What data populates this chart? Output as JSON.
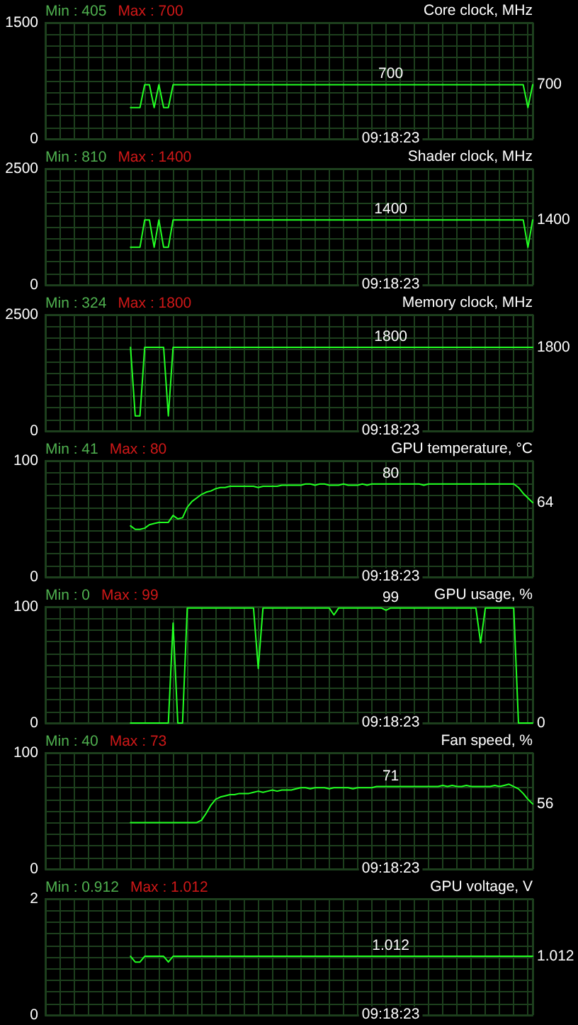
{
  "chart_data": [
    {
      "type": "line",
      "title": "Core clock, MHz",
      "annotations": [
        "Min : 405",
        "Max : 700",
        "09:18:23"
      ],
      "categories": [
        null,
        null,
        null,
        null,
        null,
        null,
        null,
        null,
        null,
        null,
        null,
        null,
        null,
        null,
        null,
        null,
        null,
        null,
        null,
        null,
        null,
        null,
        null,
        null,
        null,
        null,
        null,
        null,
        null,
        null,
        null,
        null,
        null,
        null,
        null,
        null,
        null,
        null,
        null,
        null,
        null,
        null,
        null,
        null,
        null,
        null,
        null,
        null,
        null,
        null,
        null,
        null,
        null,
        null,
        null,
        null,
        null,
        null,
        null,
        null,
        null,
        null,
        null,
        null,
        null,
        null,
        null,
        null,
        null,
        null,
        null,
        null,
        null,
        null,
        null,
        null,
        null,
        null,
        null,
        null,
        null,
        null,
        null,
        null,
        null,
        null,
        null,
        null,
        null,
        null,
        null,
        null,
        null,
        null,
        null,
        null,
        null,
        null,
        null,
        null,
        null,
        null,
        null,
        null
      ],
      "values": [
        null,
        null,
        null,
        null,
        null,
        null,
        null,
        null,
        null,
        null,
        null,
        null,
        null,
        null,
        null,
        null,
        null,
        null,
        405,
        405,
        405,
        700,
        700,
        405,
        700,
        405,
        405,
        700,
        700,
        700,
        700,
        700,
        700,
        700,
        700,
        700,
        700,
        700,
        700,
        700,
        700,
        700,
        700,
        700,
        700,
        700,
        700,
        700,
        700,
        700,
        700,
        700,
        700,
        700,
        700,
        700,
        700,
        700,
        700,
        700,
        700,
        700,
        700,
        700,
        700,
        700,
        700,
        700,
        700,
        700,
        700,
        700,
        700,
        700,
        700,
        700,
        700,
        700,
        700,
        700,
        700,
        700,
        700,
        700,
        700,
        700,
        700,
        700,
        700,
        700,
        700,
        700,
        700,
        700,
        700,
        700,
        700,
        700,
        700,
        700,
        700,
        700,
        405,
        700
      ],
      "value_labels": [
        null,
        null,
        null,
        null,
        null,
        null,
        null,
        null,
        null,
        null,
        null,
        null,
        null,
        null,
        null,
        null,
        null,
        null,
        null,
        null,
        null,
        null,
        null,
        null,
        null,
        null,
        null,
        null,
        null,
        null,
        null,
        null,
        null,
        null,
        null,
        null,
        null,
        null,
        null,
        null,
        null,
        null,
        null,
        null,
        null,
        null,
        null,
        null,
        null,
        null,
        null,
        null,
        null,
        null,
        null,
        null,
        null,
        null,
        null,
        null,
        null,
        null,
        null,
        null,
        null,
        null,
        null,
        null,
        null,
        null,
        null,
        null,
        null,
        "700",
        null,
        null,
        null,
        null,
        null,
        null,
        null,
        null,
        null,
        null,
        null,
        null,
        null,
        null,
        null,
        null,
        null,
        null,
        null,
        null,
        null,
        null,
        null,
        null,
        null,
        null,
        null,
        null,
        null,
        "700"
      ],
      "color": "#22ff22",
      "ylim": [
        0,
        1500
      ],
      "yticks": [
        0,
        {
          "value": 150,
          "label": null
        },
        {
          "value": 300,
          "label": null
        },
        {
          "value": 450,
          "label": null
        },
        {
          "value": 600,
          "label": null
        },
        {
          "value": 750,
          "label": null
        },
        {
          "value": 900,
          "label": null
        },
        {
          "value": 1050,
          "label": null
        },
        {
          "value": 1200,
          "label": null
        },
        {
          "value": 1350,
          "label": null
        },
        1500
      ],
      "grid": true,
      "tick_labels": "y",
      "marker": "none",
      "line_style": "solid"
    },
    {
      "type": "line",
      "title": "Shader clock, MHz",
      "annotations": [
        "Min : 810",
        "Max : 1400",
        "09:18:23"
      ],
      "categories": [
        null,
        null,
        null,
        null,
        null,
        null,
        null,
        null,
        null,
        null,
        null,
        null,
        null,
        null,
        null,
        null,
        null,
        null,
        null,
        null,
        null,
        null,
        null,
        null,
        null,
        null,
        null,
        null,
        null,
        null,
        null,
        null,
        null,
        null,
        null,
        null,
        null,
        null,
        null,
        null,
        null,
        null,
        null,
        null,
        null,
        null,
        null,
        null,
        null,
        null,
        null,
        null,
        null,
        null,
        null,
        null,
        null,
        null,
        null,
        null,
        null,
        null,
        null,
        null,
        null,
        null,
        null,
        null,
        null,
        null,
        null,
        null,
        null,
        null,
        null,
        null,
        null,
        null,
        null,
        null,
        null,
        null,
        null,
        null,
        null,
        null,
        null,
        null,
        null,
        null,
        null,
        null,
        null,
        null,
        null,
        null,
        null,
        null,
        null,
        null,
        null,
        null,
        null,
        null
      ],
      "values": [
        null,
        null,
        null,
        null,
        null,
        null,
        null,
        null,
        null,
        null,
        null,
        null,
        null,
        null,
        null,
        null,
        null,
        null,
        810,
        810,
        810,
        1400,
        1400,
        810,
        1400,
        810,
        810,
        1400,
        1400,
        1400,
        1400,
        1400,
        1400,
        1400,
        1400,
        1400,
        1400,
        1400,
        1400,
        1400,
        1400,
        1400,
        1400,
        1400,
        1400,
        1400,
        1400,
        1400,
        1400,
        1400,
        1400,
        1400,
        1400,
        1400,
        1400,
        1400,
        1400,
        1400,
        1400,
        1400,
        1400,
        1400,
        1400,
        1400,
        1400,
        1400,
        1400,
        1400,
        1400,
        1400,
        1400,
        1400,
        1400,
        1400,
        1400,
        1400,
        1400,
        1400,
        1400,
        1400,
        1400,
        1400,
        1400,
        1400,
        1400,
        1400,
        1400,
        1400,
        1400,
        1400,
        1400,
        1400,
        1400,
        1400,
        1400,
        1400,
        1400,
        1400,
        1400,
        1400,
        1400,
        1400,
        810,
        1400
      ],
      "value_labels": [
        null,
        null,
        null,
        null,
        null,
        null,
        null,
        null,
        null,
        null,
        null,
        null,
        null,
        null,
        null,
        null,
        null,
        null,
        null,
        null,
        null,
        null,
        null,
        null,
        null,
        null,
        null,
        null,
        null,
        null,
        null,
        null,
        null,
        null,
        null,
        null,
        null,
        null,
        null,
        null,
        null,
        null,
        null,
        null,
        null,
        null,
        null,
        null,
        null,
        null,
        null,
        null,
        null,
        null,
        null,
        null,
        null,
        null,
        null,
        null,
        null,
        null,
        null,
        null,
        null,
        null,
        null,
        null,
        null,
        null,
        null,
        null,
        null,
        "1400",
        null,
        null,
        null,
        null,
        null,
        null,
        null,
        null,
        null,
        null,
        null,
        null,
        null,
        null,
        null,
        null,
        null,
        null,
        null,
        null,
        null,
        null,
        null,
        null,
        null,
        null,
        null,
        null,
        null,
        "1400"
      ],
      "color": "#22ff22",
      "ylim": [
        0,
        2500
      ],
      "yticks": [
        0,
        {
          "value": 250,
          "label": null
        },
        {
          "value": 500,
          "label": null
        },
        {
          "value": 750,
          "label": null
        },
        {
          "value": 1000,
          "label": null
        },
        {
          "value": 1250,
          "label": null
        },
        {
          "value": 1500,
          "label": null
        },
        {
          "value": 1750,
          "label": null
        },
        {
          "value": 2000,
          "label": null
        },
        {
          "value": 2250,
          "label": null
        },
        2500
      ],
      "grid": true,
      "tick_labels": "y",
      "marker": "none",
      "line_style": "solid"
    },
    {
      "type": "line",
      "title": "Memory clock, MHz",
      "annotations": [
        "Min : 324",
        "Max : 1800",
        "09:18:23"
      ],
      "categories": [
        null,
        null,
        null,
        null,
        null,
        null,
        null,
        null,
        null,
        null,
        null,
        null,
        null,
        null,
        null,
        null,
        null,
        null,
        null,
        null,
        null,
        null,
        null,
        null,
        null,
        null,
        null,
        null,
        null,
        null,
        null,
        null,
        null,
        null,
        null,
        null,
        null,
        null,
        null,
        null,
        null,
        null,
        null,
        null,
        null,
        null,
        null,
        null,
        null,
        null,
        null,
        null,
        null,
        null,
        null,
        null,
        null,
        null,
        null,
        null,
        null,
        null,
        null,
        null,
        null,
        null,
        null,
        null,
        null,
        null,
        null,
        null,
        null,
        null,
        null,
        null,
        null,
        null,
        null,
        null,
        null,
        null,
        null,
        null,
        null,
        null,
        null,
        null,
        null,
        null,
        null,
        null,
        null,
        null,
        null,
        null,
        null,
        null,
        null,
        null,
        null,
        null,
        null,
        null
      ],
      "values": [
        null,
        null,
        null,
        null,
        null,
        null,
        null,
        null,
        null,
        null,
        null,
        null,
        null,
        null,
        null,
        null,
        null,
        null,
        1800,
        324,
        324,
        1800,
        1800,
        1800,
        1800,
        1800,
        324,
        1800,
        1800,
        1800,
        1800,
        1800,
        1800,
        1800,
        1800,
        1800,
        1800,
        1800,
        1800,
        1800,
        1800,
        1800,
        1800,
        1800,
        1800,
        1800,
        1800,
        1800,
        1800,
        1800,
        1800,
        1800,
        1800,
        1800,
        1800,
        1800,
        1800,
        1800,
        1800,
        1800,
        1800,
        1800,
        1800,
        1800,
        1800,
        1800,
        1800,
        1800,
        1800,
        1800,
        1800,
        1800,
        1800,
        1800,
        1800,
        1800,
        1800,
        1800,
        1800,
        1800,
        1800,
        1800,
        1800,
        1800,
        1800,
        1800,
        1800,
        1800,
        1800,
        1800,
        1800,
        1800,
        1800,
        1800,
        1800,
        1800,
        1800,
        1800,
        1800,
        1800,
        1800,
        1800,
        1800,
        1800
      ],
      "value_labels": [
        null,
        null,
        null,
        null,
        null,
        null,
        null,
        null,
        null,
        null,
        null,
        null,
        null,
        null,
        null,
        null,
        null,
        null,
        null,
        null,
        null,
        null,
        null,
        null,
        null,
        null,
        null,
        null,
        null,
        null,
        null,
        null,
        null,
        null,
        null,
        null,
        null,
        null,
        null,
        null,
        null,
        null,
        null,
        null,
        null,
        null,
        null,
        null,
        null,
        null,
        null,
        null,
        null,
        null,
        null,
        null,
        null,
        null,
        null,
        null,
        null,
        null,
        null,
        null,
        null,
        null,
        null,
        null,
        null,
        null,
        null,
        null,
        null,
        "1800",
        null,
        null,
        null,
        null,
        null,
        null,
        null,
        null,
        null,
        null,
        null,
        null,
        null,
        null,
        null,
        null,
        null,
        null,
        null,
        null,
        null,
        null,
        null,
        null,
        null,
        null,
        null,
        null,
        null,
        "1800"
      ],
      "color": "#22ff22",
      "ylim": [
        0,
        2500
      ],
      "yticks": [
        0,
        {
          "value": 250,
          "label": null
        },
        {
          "value": 500,
          "label": null
        },
        {
          "value": 750,
          "label": null
        },
        {
          "value": 1000,
          "label": null
        },
        {
          "value": 1250,
          "label": null
        },
        {
          "value": 1500,
          "label": null
        },
        {
          "value": 1750,
          "label": null
        },
        {
          "value": 2000,
          "label": null
        },
        {
          "value": 2250,
          "label": null
        },
        2500
      ],
      "grid": true,
      "tick_labels": "y",
      "marker": "none",
      "line_style": "solid"
    },
    {
      "type": "line",
      "title": "GPU temperature, °C",
      "annotations": [
        "Min : 41",
        "Max : 80",
        "09:18:23"
      ],
      "categories": [
        null,
        null,
        null,
        null,
        null,
        null,
        null,
        null,
        null,
        null,
        null,
        null,
        null,
        null,
        null,
        null,
        null,
        null,
        null,
        null,
        null,
        null,
        null,
        null,
        null,
        null,
        null,
        null,
        null,
        null,
        null,
        null,
        null,
        null,
        null,
        null,
        null,
        null,
        null,
        null,
        null,
        null,
        null,
        null,
        null,
        null,
        null,
        null,
        null,
        null,
        null,
        null,
        null,
        null,
        null,
        null,
        null,
        null,
        null,
        null,
        null,
        null,
        null,
        null,
        null,
        null,
        null,
        null,
        null,
        null,
        null,
        null,
        null,
        null,
        null,
        null,
        null,
        null,
        null,
        null,
        null,
        null,
        null,
        null,
        null,
        null,
        null,
        null,
        null,
        null,
        null,
        null,
        null,
        null,
        null,
        null,
        null,
        null,
        null,
        null,
        null,
        null,
        null,
        null
      ],
      "values": [
        null,
        null,
        null,
        null,
        null,
        null,
        null,
        null,
        null,
        null,
        null,
        null,
        null,
        null,
        null,
        null,
        null,
        null,
        44,
        41,
        41,
        42,
        45,
        46,
        47,
        47,
        47,
        53,
        50,
        51,
        60,
        65,
        68,
        71,
        73,
        74,
        76,
        77,
        77,
        78,
        78,
        78,
        78,
        78,
        78,
        77,
        78,
        78,
        78,
        78,
        79,
        79,
        79,
        79,
        79,
        80,
        80,
        79,
        80,
        80,
        79,
        79,
        79,
        80,
        79,
        79,
        79,
        80,
        79,
        80,
        80,
        80,
        80,
        80,
        80,
        80,
        80,
        80,
        80,
        80,
        79,
        80,
        80,
        80,
        80,
        80,
        80,
        80,
        80,
        80,
        80,
        80,
        80,
        80,
        80,
        80,
        80,
        80,
        80,
        80,
        77,
        72,
        68,
        64
      ],
      "value_labels": [
        null,
        null,
        null,
        null,
        null,
        null,
        null,
        null,
        null,
        null,
        null,
        null,
        null,
        null,
        null,
        null,
        null,
        null,
        null,
        null,
        null,
        null,
        null,
        null,
        null,
        null,
        null,
        null,
        null,
        null,
        null,
        null,
        null,
        null,
        null,
        null,
        null,
        null,
        null,
        null,
        null,
        null,
        null,
        null,
        null,
        null,
        null,
        null,
        null,
        null,
        null,
        null,
        null,
        null,
        null,
        null,
        null,
        null,
        null,
        null,
        null,
        null,
        null,
        null,
        null,
        null,
        null,
        null,
        null,
        null,
        null,
        null,
        null,
        "80",
        null,
        null,
        null,
        null,
        null,
        null,
        null,
        null,
        null,
        null,
        null,
        null,
        null,
        null,
        null,
        null,
        null,
        null,
        null,
        null,
        null,
        null,
        null,
        null,
        null,
        null,
        null,
        null,
        null,
        "64"
      ],
      "color": "#22ff22",
      "ylim": [
        0,
        100
      ],
      "yticks": [
        0,
        {
          "value": 10,
          "label": null
        },
        {
          "value": 20,
          "label": null
        },
        {
          "value": 30,
          "label": null
        },
        {
          "value": 40,
          "label": null
        },
        {
          "value": 50,
          "label": null
        },
        {
          "value": 60,
          "label": null
        },
        {
          "value": 70,
          "label": null
        },
        {
          "value": 80,
          "label": null
        },
        {
          "value": 90,
          "label": null
        },
        100
      ],
      "grid": true,
      "tick_labels": "y",
      "marker": "none",
      "line_style": "solid"
    },
    {
      "type": "line",
      "title": "GPU usage, %",
      "annotations": [
        "Min : 0",
        "Max : 99",
        "09:18:23"
      ],
      "categories": [
        null,
        null,
        null,
        null,
        null,
        null,
        null,
        null,
        null,
        null,
        null,
        null,
        null,
        null,
        null,
        null,
        null,
        null,
        null,
        null,
        null,
        null,
        null,
        null,
        null,
        null,
        null,
        null,
        null,
        null,
        null,
        null,
        null,
        null,
        null,
        null,
        null,
        null,
        null,
        null,
        null,
        null,
        null,
        null,
        null,
        null,
        null,
        null,
        null,
        null,
        null,
        null,
        null,
        null,
        null,
        null,
        null,
        null,
        null,
        null,
        null,
        null,
        null,
        null,
        null,
        null,
        null,
        null,
        null,
        null,
        null,
        null,
        null,
        null,
        null,
        null,
        null,
        null,
        null,
        null,
        null,
        null,
        null,
        null,
        null,
        null,
        null,
        null,
        null,
        null,
        null,
        null,
        null,
        null,
        null,
        null,
        null,
        null,
        null,
        null,
        null,
        null,
        null,
        null
      ],
      "values": [
        null,
        null,
        null,
        null,
        null,
        null,
        null,
        null,
        null,
        null,
        null,
        null,
        null,
        null,
        null,
        null,
        null,
        null,
        0,
        0,
        0,
        0,
        0,
        0,
        0,
        0,
        0,
        86,
        0,
        0,
        99,
        99,
        99,
        99,
        99,
        99,
        99,
        99,
        99,
        99,
        99,
        99,
        99,
        99,
        99,
        47,
        99,
        99,
        99,
        99,
        99,
        99,
        99,
        99,
        99,
        99,
        99,
        99,
        99,
        99,
        99,
        93,
        99,
        99,
        99,
        99,
        99,
        99,
        99,
        99,
        99,
        99,
        97,
        99,
        99,
        99,
        99,
        99,
        99,
        99,
        99,
        99,
        99,
        99,
        99,
        99,
        99,
        99,
        99,
        99,
        99,
        99,
        69,
        99,
        99,
        99,
        99,
        99,
        99,
        99,
        0,
        0,
        0,
        0
      ],
      "value_labels": [
        null,
        null,
        null,
        null,
        null,
        null,
        null,
        null,
        null,
        null,
        null,
        null,
        null,
        null,
        null,
        null,
        null,
        null,
        null,
        null,
        null,
        null,
        null,
        null,
        null,
        null,
        null,
        null,
        null,
        null,
        null,
        null,
        null,
        null,
        null,
        null,
        null,
        null,
        null,
        null,
        null,
        null,
        null,
        null,
        null,
        null,
        null,
        null,
        null,
        null,
        null,
        null,
        null,
        null,
        null,
        null,
        null,
        null,
        null,
        null,
        null,
        null,
        null,
        null,
        null,
        null,
        null,
        null,
        null,
        null,
        null,
        null,
        null,
        "99",
        null,
        null,
        null,
        null,
        null,
        null,
        null,
        null,
        null,
        null,
        null,
        null,
        null,
        null,
        null,
        null,
        null,
        null,
        null,
        null,
        null,
        null,
        null,
        null,
        null,
        null,
        null,
        null,
        null,
        "0"
      ],
      "color": "#22ff22",
      "ylim": [
        0,
        100
      ],
      "yticks": [
        0,
        {
          "value": 10,
          "label": null
        },
        {
          "value": 20,
          "label": null
        },
        {
          "value": 30,
          "label": null
        },
        {
          "value": 40,
          "label": null
        },
        {
          "value": 50,
          "label": null
        },
        {
          "value": 60,
          "label": null
        },
        {
          "value": 70,
          "label": null
        },
        {
          "value": 80,
          "label": null
        },
        {
          "value": 90,
          "label": null
        },
        100
      ],
      "grid": true,
      "tick_labels": "y",
      "marker": "none",
      "line_style": "solid"
    },
    {
      "type": "line",
      "title": "Fan speed, %",
      "annotations": [
        "Min : 40",
        "Max : 73",
        "09:18:23"
      ],
      "categories": [
        null,
        null,
        null,
        null,
        null,
        null,
        null,
        null,
        null,
        null,
        null,
        null,
        null,
        null,
        null,
        null,
        null,
        null,
        null,
        null,
        null,
        null,
        null,
        null,
        null,
        null,
        null,
        null,
        null,
        null,
        null,
        null,
        null,
        null,
        null,
        null,
        null,
        null,
        null,
        null,
        null,
        null,
        null,
        null,
        null,
        null,
        null,
        null,
        null,
        null,
        null,
        null,
        null,
        null,
        null,
        null,
        null,
        null,
        null,
        null,
        null,
        null,
        null,
        null,
        null,
        null,
        null,
        null,
        null,
        null,
        null,
        null,
        null,
        null,
        null,
        null,
        null,
        null,
        null,
        null,
        null,
        null,
        null,
        null,
        null,
        null,
        null,
        null,
        null,
        null,
        null,
        null,
        null,
        null,
        null,
        null,
        null,
        null,
        null,
        null,
        null,
        null,
        null,
        null
      ],
      "values": [
        null,
        null,
        null,
        null,
        null,
        null,
        null,
        null,
        null,
        null,
        null,
        null,
        null,
        null,
        null,
        null,
        null,
        null,
        40,
        40,
        40,
        40,
        40,
        40,
        40,
        40,
        40,
        40,
        40,
        40,
        40,
        40,
        40,
        42,
        48,
        55,
        60,
        62,
        63,
        64,
        64,
        65,
        65,
        65,
        66,
        67,
        66,
        67,
        68,
        67,
        68,
        68,
        68,
        69,
        70,
        70,
        69,
        70,
        70,
        70,
        69,
        70,
        70,
        70,
        70,
        69,
        70,
        70,
        70,
        70,
        71,
        71,
        71,
        71,
        71,
        71,
        71,
        71,
        71,
        71,
        71,
        71,
        71,
        71,
        72,
        71,
        72,
        71,
        71,
        72,
        71,
        71,
        71,
        71,
        71,
        72,
        71,
        72,
        73,
        71,
        69,
        65,
        60,
        56
      ],
      "value_labels": [
        null,
        null,
        null,
        null,
        null,
        null,
        null,
        null,
        null,
        null,
        null,
        null,
        null,
        null,
        null,
        null,
        null,
        null,
        null,
        null,
        null,
        null,
        null,
        null,
        null,
        null,
        null,
        null,
        null,
        null,
        null,
        null,
        null,
        null,
        null,
        null,
        null,
        null,
        null,
        null,
        null,
        null,
        null,
        null,
        null,
        null,
        null,
        null,
        null,
        null,
        null,
        null,
        null,
        null,
        null,
        null,
        null,
        null,
        null,
        null,
        null,
        null,
        null,
        null,
        null,
        null,
        null,
        null,
        null,
        null,
        null,
        null,
        null,
        "71",
        null,
        null,
        null,
        null,
        null,
        null,
        null,
        null,
        null,
        null,
        null,
        null,
        null,
        null,
        null,
        null,
        null,
        null,
        null,
        null,
        null,
        null,
        null,
        null,
        null,
        null,
        null,
        null,
        null,
        "56"
      ],
      "color": "#22ff22",
      "ylim": [
        0,
        100
      ],
      "yticks": [
        0,
        {
          "value": 10,
          "label": null
        },
        {
          "value": 20,
          "label": null
        },
        {
          "value": 30,
          "label": null
        },
        {
          "value": 40,
          "label": null
        },
        {
          "value": 50,
          "label": null
        },
        {
          "value": 60,
          "label": null
        },
        {
          "value": 70,
          "label": null
        },
        {
          "value": 80,
          "label": null
        },
        {
          "value": 90,
          "label": null
        },
        100
      ],
      "grid": true,
      "tick_labels": "y",
      "marker": "none",
      "line_style": "solid"
    },
    {
      "type": "line",
      "title": "GPU voltage, V",
      "annotations": [
        "Min : 0.912",
        "Max : 1.012",
        "09:18:23"
      ],
      "categories": [
        null,
        null,
        null,
        null,
        null,
        null,
        null,
        null,
        null,
        null,
        null,
        null,
        null,
        null,
        null,
        null,
        null,
        null,
        null,
        null,
        null,
        null,
        null,
        null,
        null,
        null,
        null,
        null,
        null,
        null,
        null,
        null,
        null,
        null,
        null,
        null,
        null,
        null,
        null,
        null,
        null,
        null,
        null,
        null,
        null,
        null,
        null,
        null,
        null,
        null,
        null,
        null,
        null,
        null,
        null,
        null,
        null,
        null,
        null,
        null,
        null,
        null,
        null,
        null,
        null,
        null,
        null,
        null,
        null,
        null,
        null,
        null,
        null,
        null,
        null,
        null,
        null,
        null,
        null,
        null,
        null,
        null,
        null,
        null,
        null,
        null,
        null,
        null,
        null,
        null,
        null,
        null,
        null,
        null,
        null,
        null,
        null,
        null,
        null,
        null,
        null,
        null,
        null,
        null
      ],
      "values": [
        null,
        null,
        null,
        null,
        null,
        null,
        null,
        null,
        null,
        null,
        null,
        null,
        null,
        null,
        null,
        null,
        null,
        null,
        1.012,
        0.912,
        0.912,
        1.012,
        1.012,
        1.012,
        1.012,
        1.012,
        0.912,
        1.012,
        1.012,
        1.012,
        1.012,
        1.012,
        1.012,
        1.012,
        1.012,
        1.012,
        1.012,
        1.012,
        1.012,
        1.012,
        1.012,
        1.012,
        1.012,
        1.012,
        1.012,
        1.012,
        1.012,
        1.012,
        1.012,
        1.012,
        1.012,
        1.012,
        1.012,
        1.012,
        1.012,
        1.012,
        1.012,
        1.012,
        1.012,
        1.012,
        1.012,
        1.012,
        1.012,
        1.012,
        1.012,
        1.012,
        1.012,
        1.012,
        1.012,
        1.012,
        1.012,
        1.012,
        1.012,
        1.012,
        1.012,
        1.012,
        1.012,
        1.012,
        1.012,
        1.012,
        1.012,
        1.012,
        1.012,
        1.012,
        1.012,
        1.012,
        1.012,
        1.012,
        1.012,
        1.012,
        1.012,
        1.012,
        1.012,
        1.012,
        1.012,
        1.012,
        1.012,
        1.012,
        1.012,
        1.012,
        1.012,
        1.012,
        1.012,
        1.012
      ],
      "value_labels": [
        null,
        null,
        null,
        null,
        null,
        null,
        null,
        null,
        null,
        null,
        null,
        null,
        null,
        null,
        null,
        null,
        null,
        null,
        null,
        null,
        null,
        null,
        null,
        null,
        null,
        null,
        null,
        null,
        null,
        null,
        null,
        null,
        null,
        null,
        null,
        null,
        null,
        null,
        null,
        null,
        null,
        null,
        null,
        null,
        null,
        null,
        null,
        null,
        null,
        null,
        null,
        null,
        null,
        null,
        null,
        null,
        null,
        null,
        null,
        null,
        null,
        null,
        null,
        null,
        null,
        null,
        null,
        null,
        null,
        null,
        null,
        null,
        null,
        "1.012",
        null,
        null,
        null,
        null,
        null,
        null,
        null,
        null,
        null,
        null,
        null,
        null,
        null,
        null,
        null,
        null,
        null,
        null,
        null,
        null,
        null,
        null,
        null,
        null,
        null,
        null,
        null,
        null,
        null,
        "1.012"
      ],
      "color": "#22ff22",
      "ylim": [
        0,
        2
      ],
      "yticks": [
        0,
        {
          "value": 0.2,
          "label": null
        },
        {
          "value": 0.4,
          "label": null
        },
        {
          "value": 0.6,
          "label": null
        },
        {
          "value": 0.8,
          "label": null
        },
        {
          "value": 1,
          "label": null
        },
        {
          "value": 1.2,
          "label": null
        },
        {
          "value": 1.4,
          "label": null
        },
        {
          "value": 1.6,
          "label": null
        },
        {
          "value": 1.8,
          "label": null
        },
        2
      ],
      "grid": true,
      "tick_labels": "y",
      "marker": "none",
      "line_style": "solid"
    }
  ]
}
